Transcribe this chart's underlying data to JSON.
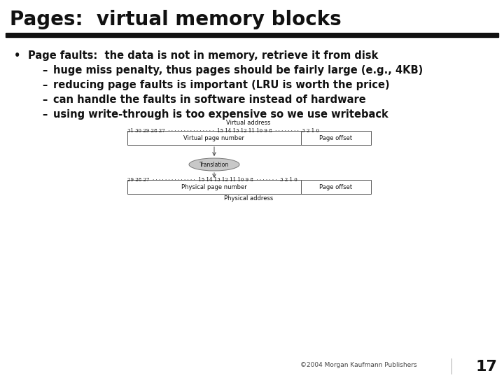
{
  "title": "Pages:  virtual memory blocks",
  "background_color": "#ffffff",
  "title_fontsize": 20,
  "bar_color": "#111111",
  "bullet_text": "Page faults:  the data is not in memory, retrieve it from disk",
  "bullet_fontsize": 10.5,
  "sub_bullets": [
    "huge miss penalty, thus pages should be fairly large (e.g., 4KB)",
    "reducing page faults is important (LRU is worth the price)",
    "can handle the faults in software instead of hardware",
    "using write-through is too expensive so we use writeback"
  ],
  "footer": "©2004 Morgan Kaufmann Publishers",
  "page_number": "17",
  "diagram": {
    "virtual_address_label": "Virtual address",
    "virtual_bits": "31 30 29 28 27  · · · · · · · · · · · · · · ·  15 14 13 12 11 10 9 8  · · · · · · · ·  3 2 1 0",
    "virtual_page_label": "Virtual page number",
    "page_offset_label": "Page offset",
    "translation_label": "Translation",
    "physical_bits": "29 28 27  · · · · · · · · · · · · · ·  15 14 13 12 11 10 9 8  · · · · · · ·  3 2 1 0",
    "physical_page_label": "Physical page number",
    "physical_offset_label": "Page offset",
    "physical_address_label": "Physical address"
  }
}
